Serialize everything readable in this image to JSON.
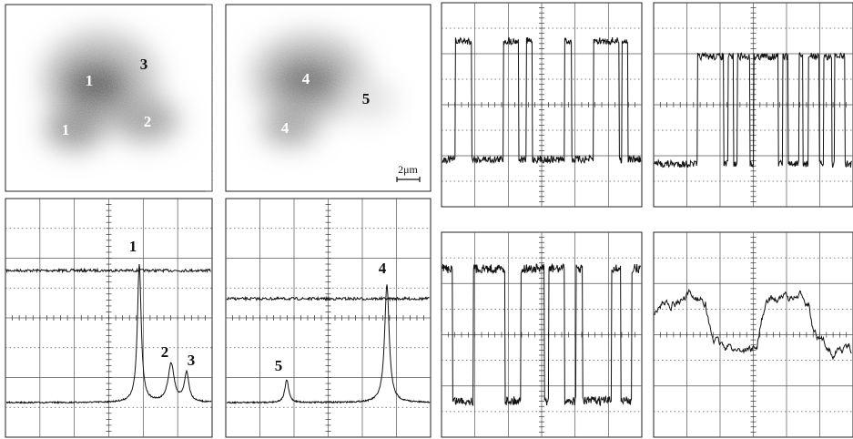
{
  "images": [
    {
      "labels": [
        "1",
        "3",
        "1",
        "2"
      ]
    },
    {
      "labels": [
        "4",
        "5",
        "4"
      ],
      "scale_bar": "2μm"
    }
  ],
  "traces": [
    {
      "peak_labels": [
        "1",
        "2",
        "3"
      ]
    },
    {
      "peak_labels": [
        "5",
        "4"
      ]
    }
  ]
}
